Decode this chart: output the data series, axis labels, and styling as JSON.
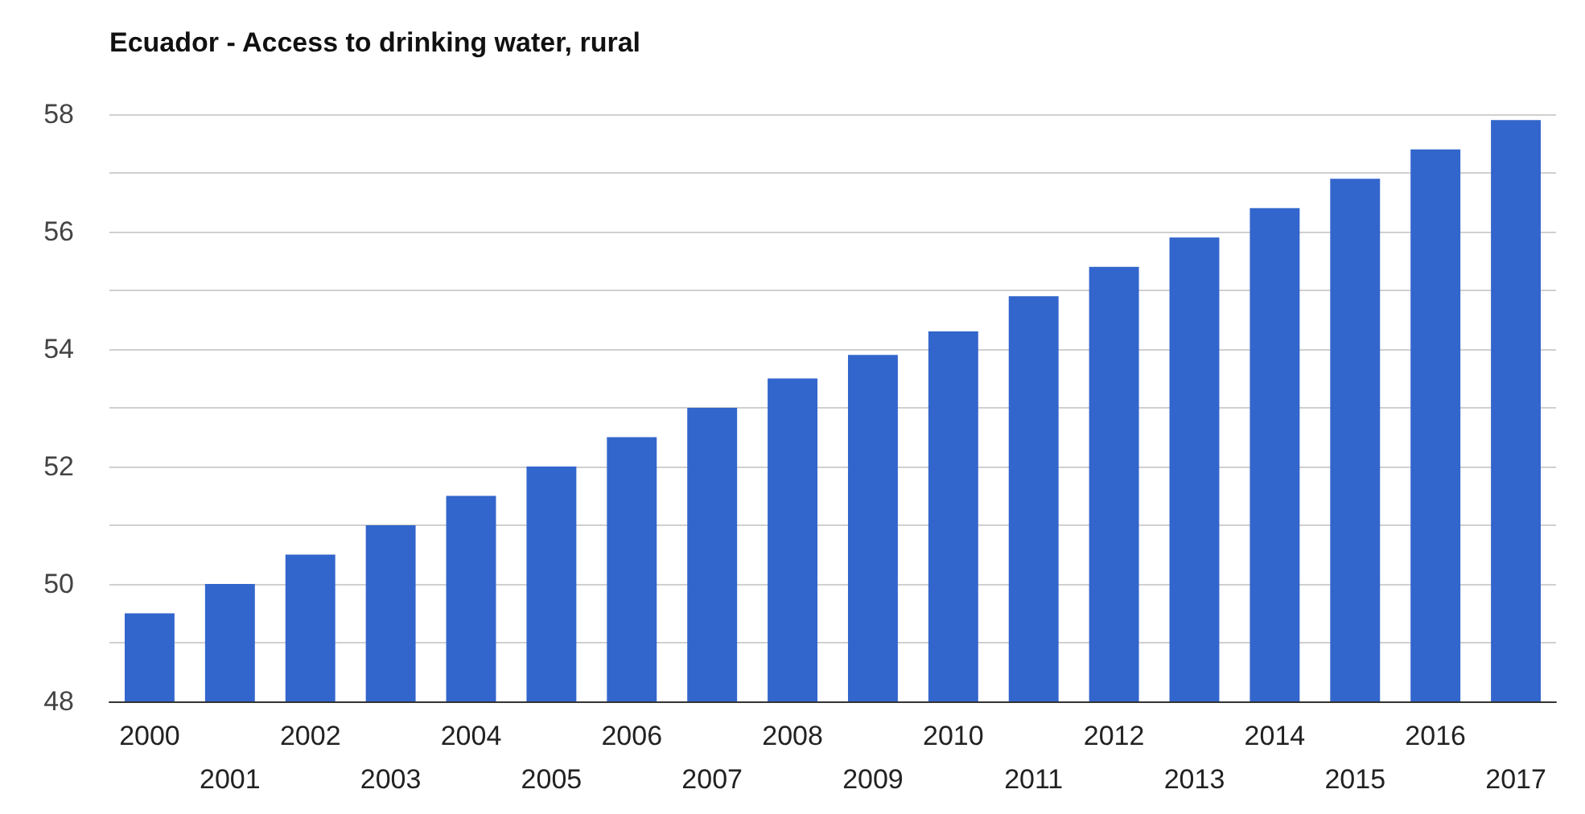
{
  "chart_data": {
    "type": "bar",
    "title": "Ecuador - Access to drinking water, rural",
    "categories": [
      "2000",
      "2001",
      "2002",
      "2003",
      "2004",
      "2005",
      "2006",
      "2007",
      "2008",
      "2009",
      "2010",
      "2011",
      "2012",
      "2013",
      "2014",
      "2015",
      "2016",
      "2017"
    ],
    "values": [
      49.5,
      50.0,
      50.5,
      51.0,
      51.5,
      52.0,
      52.5,
      53.0,
      53.5,
      53.9,
      54.3,
      54.9,
      55.4,
      55.9,
      56.4,
      56.9,
      57.4,
      57.9
    ],
    "color": "#3366cc",
    "ylim": [
      48,
      58
    ],
    "yticks": [
      48,
      {
        "value": 49,
        "label": null
      },
      50,
      {
        "value": 51,
        "label": null
      },
      52,
      {
        "value": 53,
        "label": null
      },
      54,
      {
        "value": 55,
        "label": null
      },
      56,
      {
        "value": 57,
        "label": null
      },
      58
    ],
    "grid": true
  }
}
